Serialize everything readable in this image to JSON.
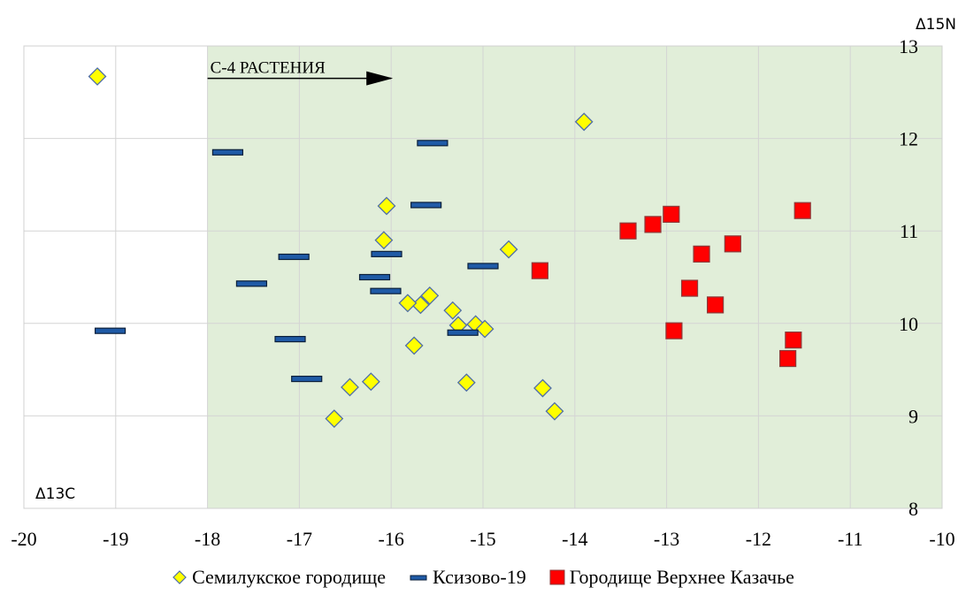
{
  "chart_data": {
    "type": "scatter",
    "xlabel": "Δ13C",
    "ylabel": "Δ15N",
    "xlim": [
      -20,
      -10
    ],
    "ylim": [
      8,
      13
    ],
    "xticks": [
      -20,
      -19,
      -18,
      -17,
      -16,
      -15,
      -14,
      -13,
      -12,
      -11,
      -10
    ],
    "yticks": [
      8,
      9,
      10,
      11,
      12,
      13
    ],
    "grid": true,
    "shaded_region": {
      "x_from": -18,
      "x_to": -10,
      "color": "#e1eed9"
    },
    "annotation": {
      "text": "С-4 РАСТЕНИЯ",
      "x_from": -18,
      "x_to": -16,
      "y": 12.65
    },
    "legend_position": "bottom",
    "series": [
      {
        "name": "Семилукское городище",
        "marker": "diamond",
        "color": "#ffff00",
        "edge_color": "#4f6ea8",
        "points": [
          [
            -19.2,
            12.67
          ],
          [
            -13.9,
            12.18
          ],
          [
            -16.05,
            11.27
          ],
          [
            -16.08,
            10.9
          ],
          [
            -14.72,
            10.8
          ],
          [
            -15.58,
            10.3
          ],
          [
            -15.68,
            10.2
          ],
          [
            -15.82,
            10.22
          ],
          [
            -15.33,
            10.14
          ],
          [
            -15.27,
            9.98
          ],
          [
            -15.08,
            9.99
          ],
          [
            -14.98,
            9.94
          ],
          [
            -15.75,
            9.76
          ],
          [
            -16.22,
            9.37
          ],
          [
            -16.45,
            9.31
          ],
          [
            -15.18,
            9.36
          ],
          [
            -14.35,
            9.3
          ],
          [
            -14.22,
            9.05
          ],
          [
            -16.62,
            8.97
          ]
        ]
      },
      {
        "name": "Ксизово-19",
        "marker": "dash",
        "color": "#1f5aa6",
        "edge_color": "#0b1f3a",
        "points": [
          [
            -15.55,
            11.95
          ],
          [
            -17.78,
            11.85
          ],
          [
            -15.62,
            11.28
          ],
          [
            -16.05,
            10.75
          ],
          [
            -17.06,
            10.72
          ],
          [
            -15.0,
            10.62
          ],
          [
            -17.52,
            10.43
          ],
          [
            -16.18,
            10.5
          ],
          [
            -16.06,
            10.35
          ],
          [
            -15.22,
            9.9
          ],
          [
            -17.1,
            9.83
          ],
          [
            -19.06,
            9.92
          ],
          [
            -16.92,
            9.4
          ]
        ]
      },
      {
        "name": "Городище Верхнее Казачье",
        "marker": "square",
        "color": "#ff0000",
        "edge_color": "#8b3a3a",
        "points": [
          [
            -11.52,
            11.22
          ],
          [
            -12.95,
            11.18
          ],
          [
            -13.15,
            11.07
          ],
          [
            -13.42,
            11.0
          ],
          [
            -12.28,
            10.86
          ],
          [
            -12.62,
            10.75
          ],
          [
            -14.38,
            10.57
          ],
          [
            -12.75,
            10.38
          ],
          [
            -12.47,
            10.2
          ],
          [
            -12.92,
            9.92
          ],
          [
            -11.62,
            9.82
          ],
          [
            -11.68,
            9.62
          ]
        ]
      }
    ]
  }
}
